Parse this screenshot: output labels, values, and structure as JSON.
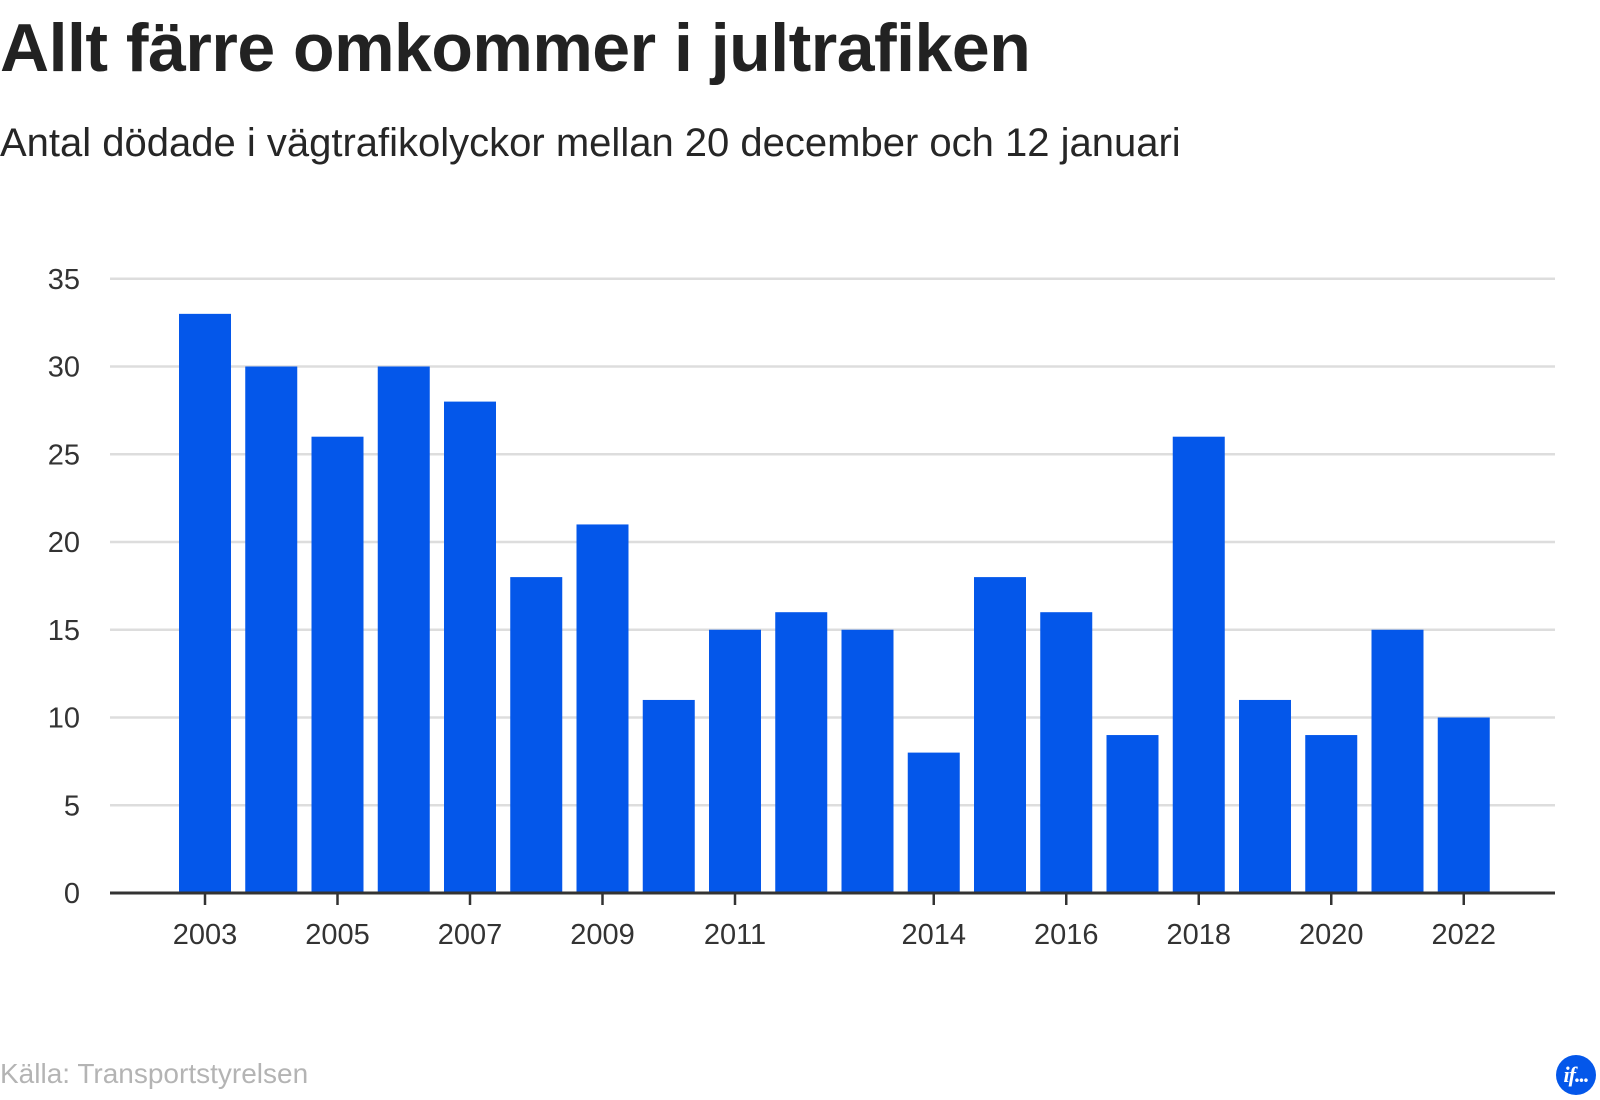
{
  "title": "Allt färre omkommer i jultrafiken",
  "subtitle": "Antal dödade i vägtrafikolyckor mellan 20 december och 12 januari",
  "source": "Källa: Transportstyrelsen",
  "logo_text": "if...",
  "colors": {
    "bar": "#0457ea",
    "grid": "#dddddd",
    "axis": "#333333",
    "logo": "#0457ea"
  },
  "chart_data": {
    "type": "bar",
    "title": "Allt färre omkommer i jultrafiken",
    "subtitle": "Antal dödade i vägtrafikolyckor mellan 20 december och 12 januari",
    "xlabel": "",
    "ylabel": "",
    "categories": [
      "2003",
      "2004",
      "2005",
      "2006",
      "2007",
      "2008",
      "2009",
      "2010",
      "2011",
      "2012",
      "2013",
      "2014",
      "2015",
      "2016",
      "2017",
      "2018",
      "2019",
      "2020",
      "2021",
      "2022"
    ],
    "values": [
      33,
      30,
      26,
      30,
      28,
      18,
      21,
      11,
      15,
      16,
      15,
      8,
      18,
      16,
      9,
      26,
      11,
      9,
      15,
      10
    ],
    "x_tick_labels": [
      "2003",
      "2005",
      "2007",
      "2009",
      "2011",
      "2014",
      "2016",
      "2018",
      "2020",
      "2022"
    ],
    "x_tick_positions_index": [
      0,
      2,
      4,
      6,
      8,
      11,
      13,
      15,
      17,
      19
    ],
    "y_ticks": [
      0,
      5,
      10,
      15,
      20,
      25,
      30,
      35
    ],
    "ylim": [
      0,
      35
    ],
    "grid": true,
    "legend": "none"
  }
}
